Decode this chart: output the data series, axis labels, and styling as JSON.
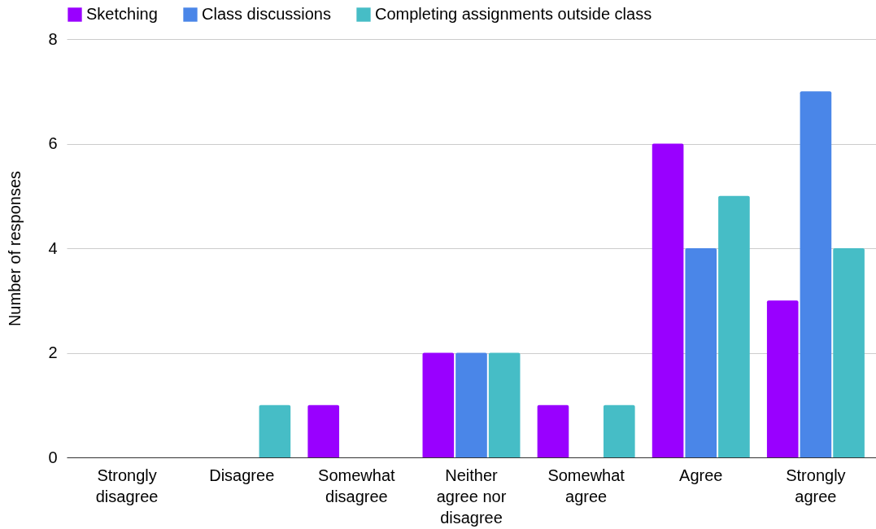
{
  "chart_data": {
    "type": "bar",
    "ylabel": "Number of responses",
    "categories": [
      "Strongly disagree",
      "Disagree",
      "Somewhat disagree",
      "Neither agree nor disagree",
      "Somewhat agree",
      "Agree",
      "Strongly agree"
    ],
    "series": [
      {
        "name": "Sketching",
        "color": "#9900ff",
        "values": [
          0,
          0,
          1,
          2,
          1,
          6,
          3
        ]
      },
      {
        "name": "Class discussions",
        "color": "#4a86e8",
        "values": [
          0,
          0,
          0,
          2,
          0,
          4,
          7
        ]
      },
      {
        "name": "Completing assignments outside class",
        "color": "#46bdc6",
        "values": [
          0,
          1,
          0,
          2,
          1,
          5,
          4
        ]
      }
    ],
    "ylim": [
      0,
      8
    ],
    "yticks": [
      0,
      2,
      4,
      6,
      8
    ],
    "grid": "y",
    "legend": "top left"
  }
}
